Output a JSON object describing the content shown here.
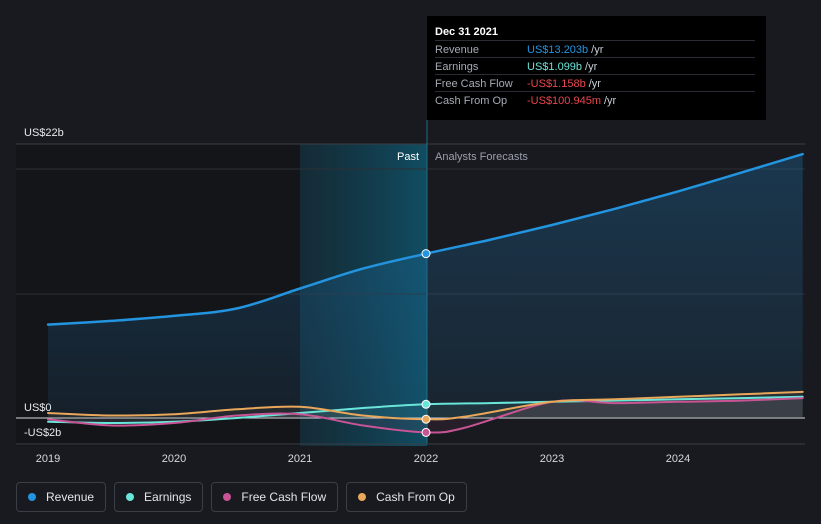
{
  "chart_data": {
    "type": "line",
    "x_axis": {
      "ticks": [
        "2019",
        "2020",
        "2021",
        "2022",
        "2023",
        "2024"
      ]
    },
    "y_axis": {
      "labels": [
        "US$22b",
        "US$0",
        "-US$2b"
      ],
      "ylim": [
        -2,
        22
      ]
    },
    "regions": {
      "past_label": "Past",
      "forecast_label": "Analysts Forecasts"
    },
    "series": [
      {
        "name": "Revenue",
        "color": "#2394df",
        "points": [
          [
            2019.0,
            7.5
          ],
          [
            2019.5,
            7.8
          ],
          [
            2020.0,
            8.2
          ],
          [
            2020.5,
            8.8
          ],
          [
            2021.0,
            10.4
          ],
          [
            2021.5,
            12.0
          ],
          [
            2022.0,
            13.2
          ],
          [
            2022.5,
            14.3
          ],
          [
            2023.0,
            15.5
          ],
          [
            2023.5,
            16.8
          ],
          [
            2024.0,
            18.2
          ],
          [
            2024.5,
            19.7
          ],
          [
            2024.99,
            21.2
          ]
        ]
      },
      {
        "name": "Earnings",
        "color": "#6ae5d9",
        "points": [
          [
            2019.0,
            -0.3
          ],
          [
            2019.5,
            -0.4
          ],
          [
            2020.0,
            -0.3
          ],
          [
            2020.5,
            0.0
          ],
          [
            2021.0,
            0.4
          ],
          [
            2021.5,
            0.8
          ],
          [
            2022.0,
            1.1
          ],
          [
            2022.5,
            1.2
          ],
          [
            2023.0,
            1.3
          ],
          [
            2023.5,
            1.4
          ],
          [
            2024.0,
            1.5
          ],
          [
            2024.5,
            1.6
          ],
          [
            2024.99,
            1.7
          ]
        ]
      },
      {
        "name": "Free Cash Flow",
        "color": "#c75494",
        "points": [
          [
            2019.0,
            -0.1
          ],
          [
            2019.5,
            -0.6
          ],
          [
            2020.0,
            -0.4
          ],
          [
            2020.5,
            0.2
          ],
          [
            2021.0,
            0.3
          ],
          [
            2021.5,
            -0.6
          ],
          [
            2022.0,
            -1.158
          ],
          [
            2022.3,
            -0.8
          ],
          [
            2023.0,
            1.3
          ],
          [
            2023.5,
            1.2
          ],
          [
            2024.0,
            1.3
          ],
          [
            2024.5,
            1.4
          ],
          [
            2024.99,
            1.6
          ]
        ]
      },
      {
        "name": "Cash From Op",
        "color": "#e8a75a",
        "points": [
          [
            2019.0,
            0.4
          ],
          [
            2019.5,
            0.2
          ],
          [
            2020.0,
            0.3
          ],
          [
            2020.5,
            0.7
          ],
          [
            2021.0,
            0.9
          ],
          [
            2021.5,
            0.2
          ],
          [
            2022.0,
            -0.1
          ],
          [
            2022.3,
            0.1
          ],
          [
            2023.0,
            1.3
          ],
          [
            2023.5,
            1.5
          ],
          [
            2024.0,
            1.7
          ],
          [
            2024.5,
            1.9
          ],
          [
            2024.99,
            2.1
          ]
        ]
      }
    ],
    "highlight_x": 2022.0
  },
  "tooltip": {
    "date": "Dec 31 2021",
    "rows": [
      {
        "label": "Revenue",
        "value": "US$13.203b",
        "unit": "/yr",
        "color": "#2394df"
      },
      {
        "label": "Earnings",
        "value": "US$1.099b",
        "unit": "/yr",
        "color": "#6ae5d9"
      },
      {
        "label": "Free Cash Flow",
        "value": "-US$1.158b",
        "unit": "/yr",
        "color": "#e8464c"
      },
      {
        "label": "Cash From Op",
        "value": "-US$100.945m",
        "unit": "/yr",
        "color": "#e8464c"
      }
    ]
  },
  "legend": [
    {
      "label": "Revenue",
      "color": "#2394df"
    },
    {
      "label": "Earnings",
      "color": "#6ae5d9"
    },
    {
      "label": "Free Cash Flow",
      "color": "#c75494"
    },
    {
      "label": "Cash From Op",
      "color": "#e8a75a"
    }
  ]
}
